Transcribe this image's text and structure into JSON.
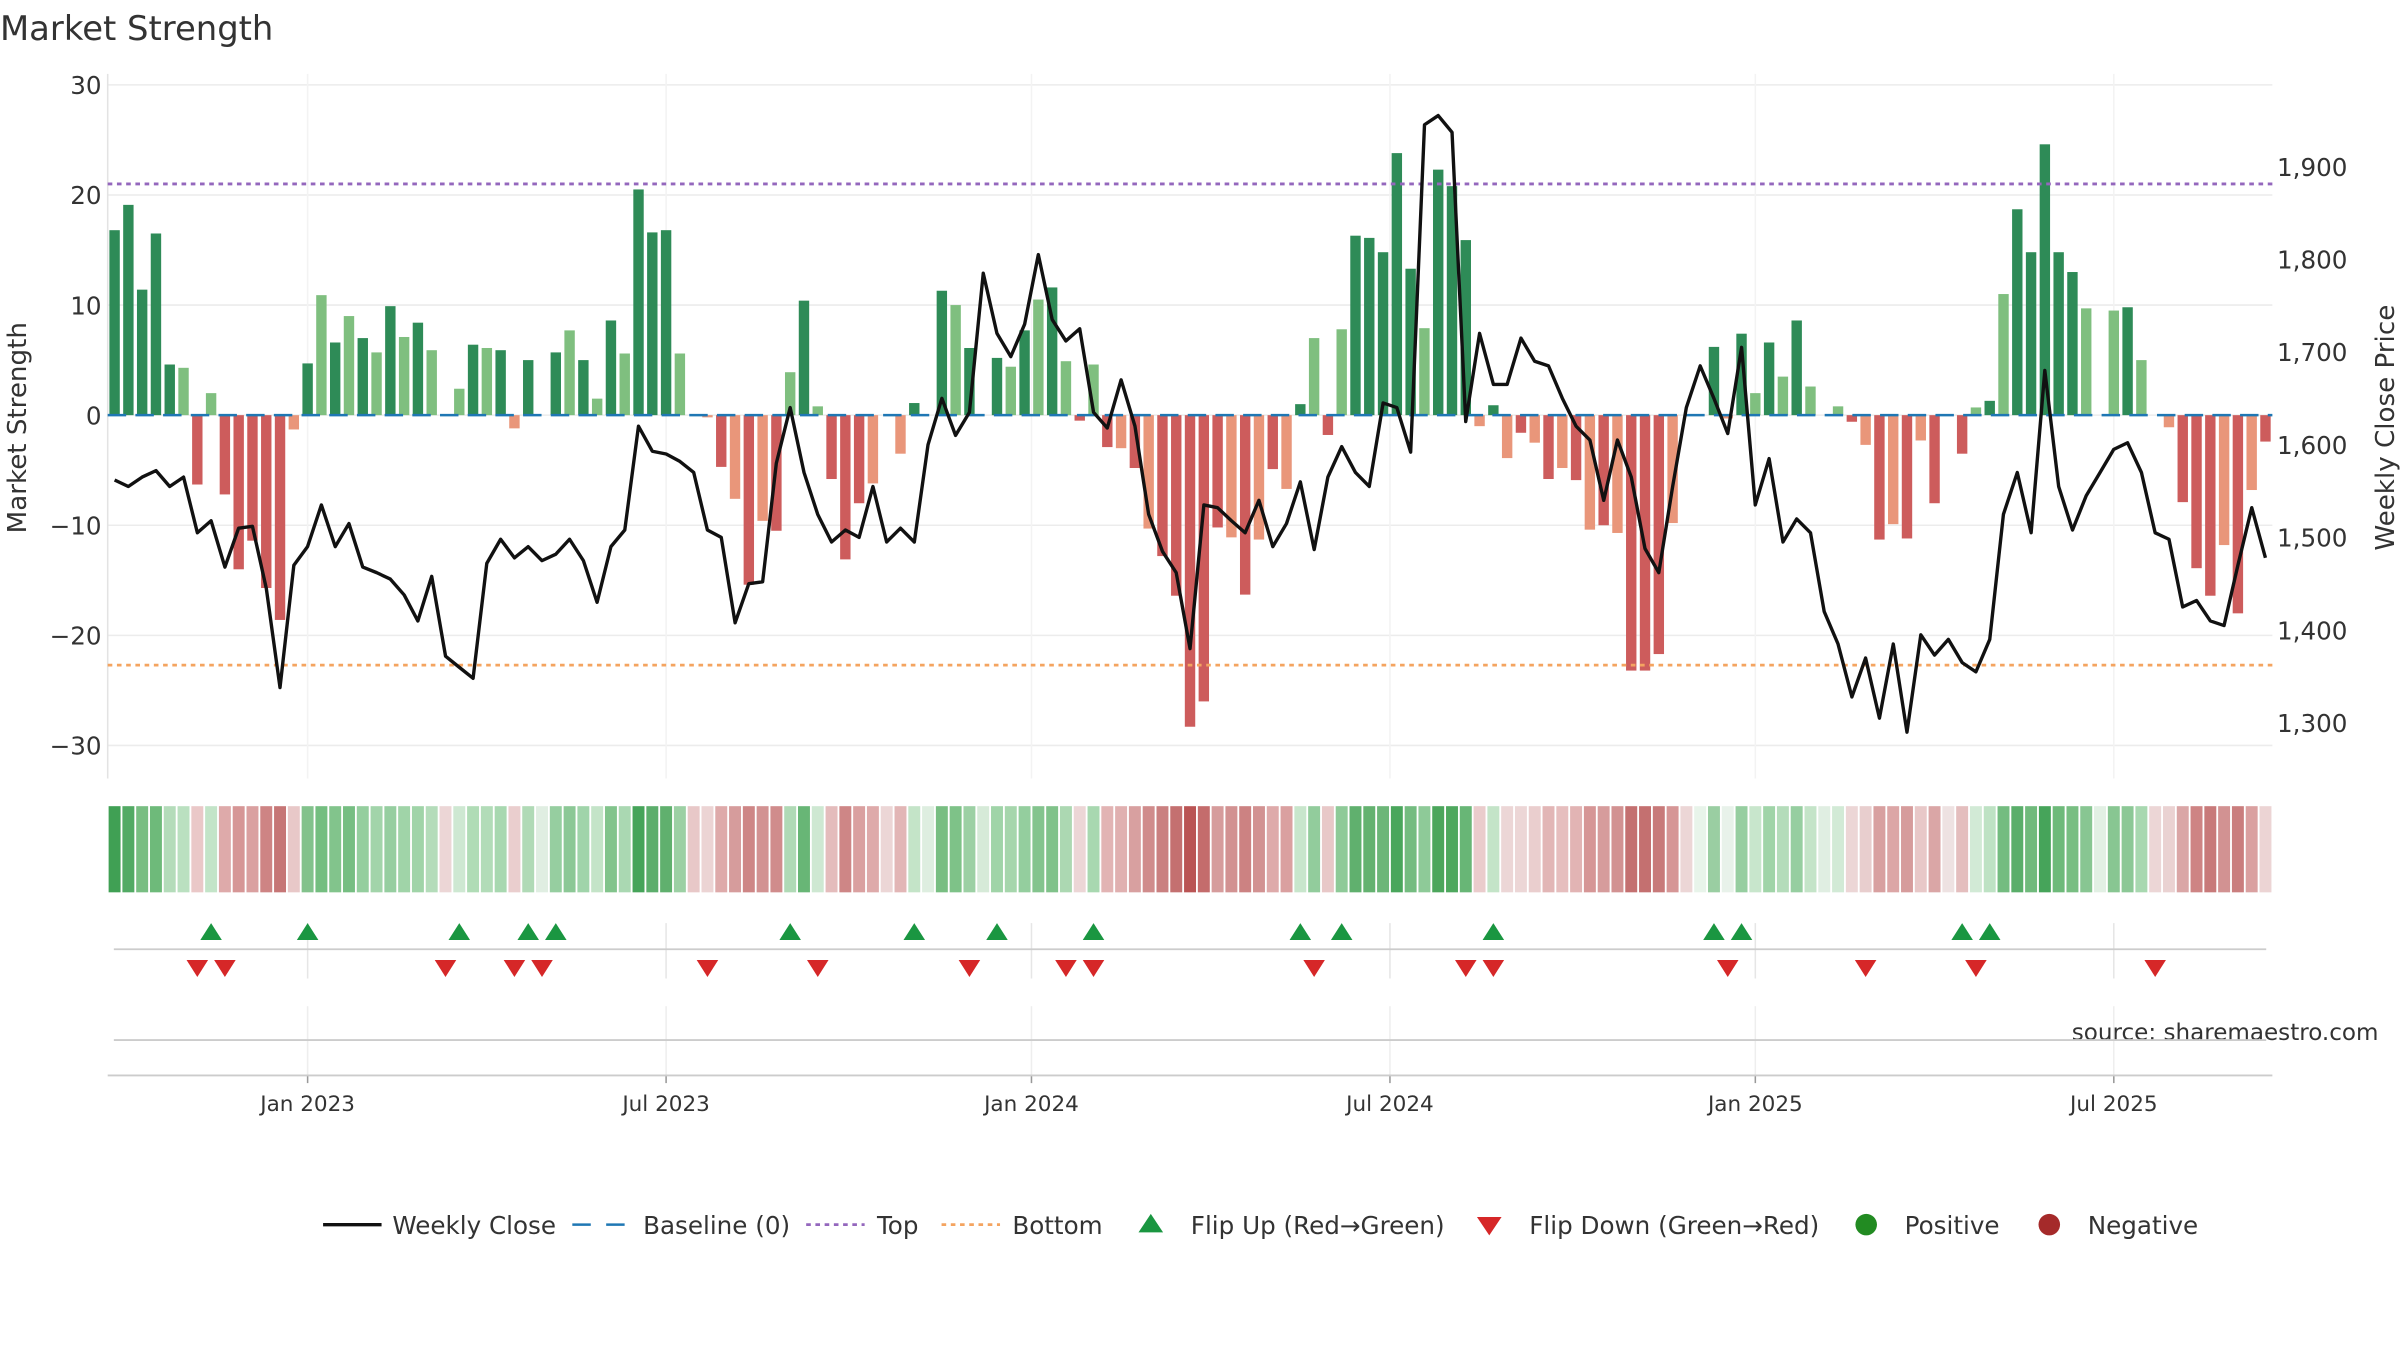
{
  "chart_data": {
    "type": "bar+line",
    "title": "Market Strength",
    "ylabel_left": "Market Strength",
    "ylabel_right": "Weekly Close Price",
    "source": "source: sharemaestro.com",
    "left_axis": {
      "ylim": [
        -33,
        31
      ],
      "ticks": [
        30,
        20,
        10,
        0,
        -10,
        -20,
        -30
      ],
      "tick_labels": [
        "30",
        "20",
        "10",
        "0",
        "−10",
        "−20",
        "−30"
      ]
    },
    "right_axis": {
      "ylim": [
        1240,
        2000
      ],
      "ticks": [
        1900,
        1800,
        1700,
        1600,
        1500,
        1400,
        1300
      ],
      "tick_labels": [
        "1,900",
        "1,800",
        "1,700",
        "1,600",
        "1,500",
        "1,400",
        "1,300"
      ]
    },
    "x_ticks": [
      {
        "label": "Jan 2023",
        "week": 14.5
      },
      {
        "label": "Jul 2023",
        "week": 40.5
      },
      {
        "label": "Jan 2024",
        "week": 67
      },
      {
        "label": "Jul 2024",
        "week": 93
      },
      {
        "label": "Jan 2025",
        "week": 119.5
      },
      {
        "label": "Jul 2025",
        "week": 145.5
      }
    ],
    "top_level": 21,
    "bottom_level": -22.7,
    "baseline": 0,
    "strength": [
      16.8,
      19.1,
      11.4,
      16.5,
      4.6,
      4.3,
      -6.3,
      2.0,
      -7.2,
      -14.0,
      -11.4,
      -15.7,
      -18.6,
      -1.3,
      4.7,
      10.9,
      6.6,
      9.0,
      7.0,
      5.7,
      9.9,
      7.1,
      8.4,
      5.9,
      0.0,
      2.4,
      6.4,
      6.1,
      5.9,
      -1.2,
      5.0,
      0.0,
      5.7,
      7.7,
      5.0,
      1.5,
      8.6,
      5.6,
      20.5,
      16.6,
      16.8,
      5.6,
      0.0,
      -0.2,
      -4.7,
      -7.6,
      -15.4,
      -9.6,
      -10.5,
      3.9,
      10.4,
      0.8,
      -5.8,
      -13.1,
      -8.0,
      -6.2,
      0.0,
      -3.5,
      1.1,
      0.0,
      11.3,
      10.0,
      6.1,
      0.0,
      5.2,
      4.4,
      7.7,
      10.5,
      11.6,
      4.9,
      -0.5,
      4.6,
      -2.9,
      -3.0,
      -4.8,
      -10.3,
      -12.8,
      -16.4,
      -28.3,
      -26.0,
      -10.2,
      -11.1,
      -16.3,
      -11.3,
      -4.9,
      -6.7,
      1.0,
      7.0,
      -1.8,
      7.8,
      16.3,
      16.1,
      14.8,
      23.8,
      13.3,
      7.9,
      22.3,
      20.8,
      15.9,
      -1.0,
      0.9,
      -3.9,
      -1.6,
      -2.5,
      -5.8,
      -4.8,
      -5.9,
      -10.4,
      -10.0,
      -10.7,
      -23.2,
      -23.2,
      -21.7,
      -9.8,
      0.0,
      0.0,
      6.2,
      -0.3,
      7.4,
      2.0,
      6.6,
      3.5,
      8.6,
      2.6,
      0.0,
      0.8,
      -0.6,
      -2.7,
      -11.3,
      -9.9,
      -11.2,
      -2.3,
      -8.0,
      0.0,
      -3.5,
      0.7,
      1.3,
      11.0,
      18.7,
      14.8,
      24.6,
      14.8,
      13.0,
      9.7,
      0.0,
      9.5,
      9.8,
      5.0,
      0.0,
      -1.1,
      -7.9,
      -13.9,
      -16.4,
      -11.8,
      -18.0,
      -6.8,
      -2.4
    ],
    "weekly_close": [
      1562,
      1555,
      1565,
      1572,
      1555,
      1565,
      1505,
      1518,
      1468,
      1510,
      1512,
      1445,
      1338,
      1470,
      1490,
      1535,
      1490,
      1515,
      1468,
      1462,
      1455,
      1438,
      1410,
      1458,
      1372,
      1360,
      1348,
      1472,
      1498,
      1478,
      1490,
      1475,
      1482,
      1498,
      1475,
      1430,
      1490,
      1508,
      1620,
      1593,
      1590,
      1582,
      1570,
      1508,
      1500,
      1408,
      1450,
      1452,
      1580,
      1640,
      1570,
      1525,
      1495,
      1508,
      1500,
      1555,
      1495,
      1510,
      1495,
      1600,
      1650,
      1610,
      1635,
      1785,
      1720,
      1695,
      1730,
      1805,
      1735,
      1712,
      1725,
      1635,
      1618,
      1670,
      1620,
      1525,
      1485,
      1462,
      1380,
      1535,
      1532,
      1518,
      1505,
      1540,
      1490,
      1515,
      1560,
      1487,
      1565,
      1598,
      1570,
      1555,
      1645,
      1640,
      1592,
      1945,
      1955,
      1937,
      1625,
      1720,
      1665,
      1665,
      1715,
      1690,
      1685,
      1650,
      1620,
      1605,
      1540,
      1605,
      1565,
      1488,
      1462,
      1555,
      1640,
      1685,
      1650,
      1612,
      1705,
      1535,
      1585,
      1495,
      1520,
      1505,
      1420,
      1385,
      1328,
      1370,
      1305,
      1385,
      1290,
      1395,
      1373,
      1390,
      1365,
      1355,
      1390,
      1525,
      1570,
      1505,
      1680,
      1555,
      1508,
      1545,
      1570,
      1595,
      1602,
      1570,
      1505,
      1498,
      1425,
      1432,
      1410,
      1405,
      1470,
      1532,
      1478
    ],
    "color_strip_rgb": [
      [
        64,
        160,
        84
      ],
      [
        82,
        170,
        100
      ],
      [
        120,
        190,
        130
      ],
      [
        110,
        186,
        122
      ],
      [
        180,
        220,
        186
      ],
      [
        186,
        224,
        192
      ],
      [
        234,
        200,
        200
      ],
      [
        195,
        228,
        200
      ],
      [
        222,
        170,
        170
      ],
      [
        214,
        150,
        150
      ],
      [
        218,
        160,
        160
      ],
      [
        206,
        132,
        132
      ],
      [
        198,
        118,
        118
      ],
      [
        232,
        200,
        200
      ],
      [
        130,
        194,
        140
      ],
      [
        116,
        190,
        128
      ],
      [
        130,
        196,
        140
      ],
      [
        118,
        190,
        130
      ],
      [
        148,
        206,
        158
      ],
      [
        162,
        212,
        170
      ],
      [
        150,
        206,
        160
      ],
      [
        160,
        212,
        168
      ],
      [
        160,
        212,
        168
      ],
      [
        180,
        220,
        186
      ],
      [
        236,
        214,
        214
      ],
      [
        206,
        232,
        210
      ],
      [
        176,
        220,
        182
      ],
      [
        178,
        220,
        184
      ],
      [
        168,
        216,
        176
      ],
      [
        234,
        206,
        206
      ],
      [
        176,
        218,
        182
      ],
      [
        224,
        238,
        226
      ],
      [
        150,
        206,
        160
      ],
      [
        140,
        200,
        150
      ],
      [
        160,
        212,
        170
      ],
      [
        196,
        228,
        200
      ],
      [
        130,
        196,
        140
      ],
      [
        170,
        216,
        178
      ],
      [
        70,
        164,
        90
      ],
      [
        92,
        174,
        108
      ],
      [
        96,
        176,
        110
      ],
      [
        156,
        208,
        164
      ],
      [
        232,
        200,
        200
      ],
      [
        236,
        212,
        212
      ],
      [
        222,
        170,
        170
      ],
      [
        214,
        156,
        156
      ],
      [
        206,
        134,
        134
      ],
      [
        210,
        146,
        146
      ],
      [
        208,
        140,
        140
      ],
      [
        176,
        218,
        182
      ],
      [
        104,
        182,
        118
      ],
      [
        206,
        232,
        210
      ],
      [
        228,
        188,
        188
      ],
      [
        206,
        134,
        134
      ],
      [
        218,
        160,
        160
      ],
      [
        222,
        170,
        170
      ],
      [
        236,
        214,
        214
      ],
      [
        226,
        182,
        182
      ],
      [
        196,
        228,
        200
      ],
      [
        222,
        238,
        224
      ],
      [
        120,
        190,
        130
      ],
      [
        126,
        194,
        136
      ],
      [
        156,
        208,
        164
      ],
      [
        214,
        234,
        216
      ],
      [
        160,
        212,
        168
      ],
      [
        166,
        214,
        172
      ],
      [
        148,
        206,
        158
      ],
      [
        132,
        196,
        142
      ],
      [
        128,
        194,
        138
      ],
      [
        172,
        216,
        178
      ],
      [
        236,
        214,
        214
      ],
      [
        168,
        216,
        176
      ],
      [
        226,
        180,
        180
      ],
      [
        224,
        176,
        176
      ],
      [
        216,
        160,
        160
      ],
      [
        208,
        140,
        140
      ],
      [
        202,
        128,
        128
      ],
      [
        196,
        112,
        112
      ],
      [
        186,
        84,
        84
      ],
      [
        196,
        108,
        108
      ],
      [
        214,
        156,
        156
      ],
      [
        210,
        146,
        146
      ],
      [
        204,
        130,
        130
      ],
      [
        210,
        146,
        146
      ],
      [
        222,
        170,
        170
      ],
      [
        218,
        160,
        160
      ],
      [
        200,
        230,
        204
      ],
      [
        146,
        204,
        156
      ],
      [
        232,
        200,
        200
      ],
      [
        142,
        202,
        152
      ],
      [
        96,
        176,
        110
      ],
      [
        100,
        178,
        112
      ],
      [
        108,
        182,
        120
      ],
      [
        74,
        166,
        92
      ],
      [
        116,
        188,
        128
      ],
      [
        142,
        202,
        152
      ],
      [
        76,
        166,
        92
      ],
      [
        78,
        168,
        94
      ],
      [
        104,
        182,
        118
      ],
      [
        234,
        204,
        204
      ],
      [
        196,
        228,
        200
      ],
      [
        236,
        214,
        214
      ],
      [
        236,
        214,
        214
      ],
      [
        234,
        206,
        206
      ],
      [
        226,
        182,
        182
      ],
      [
        230,
        190,
        190
      ],
      [
        226,
        180,
        180
      ],
      [
        214,
        150,
        150
      ],
      [
        214,
        156,
        156
      ],
      [
        210,
        146,
        146
      ],
      [
        196,
        112,
        112
      ],
      [
        196,
        112,
        112
      ],
      [
        200,
        122,
        122
      ],
      [
        214,
        150,
        150
      ],
      [
        236,
        214,
        214
      ],
      [
        232,
        244,
        234
      ],
      [
        154,
        206,
        162
      ],
      [
        232,
        242,
        234
      ],
      [
        150,
        206,
        160
      ],
      [
        200,
        230,
        204
      ],
      [
        160,
        212,
        168
      ],
      [
        180,
        220,
        186
      ],
      [
        150,
        206,
        160
      ],
      [
        196,
        228,
        200
      ],
      [
        224,
        238,
        226
      ],
      [
        210,
        234,
        214
      ],
      [
        236,
        214,
        214
      ],
      [
        232,
        206,
        206
      ],
      [
        216,
        160,
        160
      ],
      [
        220,
        166,
        166
      ],
      [
        214,
        156,
        156
      ],
      [
        232,
        200,
        200
      ],
      [
        218,
        166,
        166
      ],
      [
        238,
        226,
        226
      ],
      [
        228,
        190,
        190
      ],
      [
        210,
        234,
        214
      ],
      [
        190,
        226,
        196
      ],
      [
        116,
        188,
        128
      ],
      [
        90,
        174,
        106
      ],
      [
        112,
        186,
        124
      ],
      [
        70,
        164,
        90
      ],
      [
        110,
        186,
        122
      ],
      [
        120,
        190,
        130
      ],
      [
        136,
        198,
        146
      ],
      [
        226,
        240,
        228
      ],
      [
        136,
        198,
        146
      ],
      [
        140,
        200,
        150
      ],
      [
        168,
        216,
        176
      ],
      [
        236,
        214,
        214
      ],
      [
        234,
        210,
        210
      ],
      [
        218,
        166,
        166
      ],
      [
        206,
        132,
        132
      ],
      [
        200,
        122,
        122
      ],
      [
        210,
        146,
        146
      ],
      [
        202,
        126,
        126
      ],
      [
        218,
        160,
        160
      ],
      [
        236,
        212,
        212
      ]
    ],
    "flip_up_weeks": [
      7,
      14,
      25,
      30,
      32,
      49,
      58,
      64,
      71,
      86,
      89,
      100,
      116,
      118,
      134,
      136
    ],
    "flip_down_weeks": [
      6,
      8,
      24,
      29,
      31,
      43,
      51,
      62,
      69,
      71,
      87,
      98,
      100,
      117,
      127,
      135,
      148
    ],
    "legend": [
      {
        "label": "Weekly Close",
        "marker": "line"
      },
      {
        "label": "Baseline (0)",
        "marker": "dash"
      },
      {
        "label": "Top",
        "marker": "dotted-purple"
      },
      {
        "label": "Bottom",
        "marker": "dotted-orange"
      },
      {
        "label": "Flip Up (Red→Green)",
        "marker": "triangle-up"
      },
      {
        "label": "Flip Down (Green→Red)",
        "marker": "triangle-down"
      },
      {
        "label": "Positive",
        "marker": "circle-green"
      },
      {
        "label": "Negative",
        "marker": "circle-red"
      }
    ],
    "colors": {
      "pos_strong": "#2e8b57",
      "pos_light": "#7fbf7f",
      "neg_strong": "#cd5c5c",
      "neg_light": "#e9967a",
      "close_line": "#111111",
      "baseline": "#1f77b4",
      "top": "#9467bd",
      "bottom": "#f4a460",
      "flip_up": "#1a9641",
      "flip_down": "#d62728",
      "positive_dot": "#228b22",
      "negative_dot": "#a52a2a",
      "grid": "#ececec"
    }
  }
}
